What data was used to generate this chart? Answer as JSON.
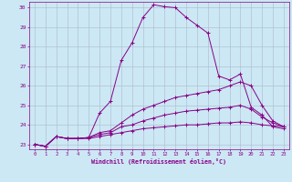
{
  "xlabel": "Windchill (Refroidissement éolien,°C)",
  "background_color": "#cce8f4",
  "line_color": "#880088",
  "grid_color": "#aab8cc",
  "xlim": [
    -0.5,
    23.5
  ],
  "ylim": [
    22.75,
    30.3
  ],
  "xticks": [
    0,
    1,
    2,
    3,
    4,
    5,
    6,
    7,
    8,
    9,
    10,
    11,
    12,
    13,
    14,
    15,
    16,
    17,
    18,
    19,
    20,
    21,
    22,
    23
  ],
  "yticks": [
    23,
    24,
    25,
    26,
    27,
    28,
    29,
    30
  ],
  "series": [
    [
      23.0,
      22.9,
      23.4,
      23.3,
      23.3,
      23.35,
      24.6,
      25.2,
      27.3,
      28.2,
      29.5,
      30.15,
      30.05,
      30.0,
      29.5,
      29.1,
      28.7,
      26.5,
      26.3,
      26.6,
      24.9,
      24.5,
      23.9,
      23.8
    ],
    [
      23.0,
      22.9,
      23.4,
      23.3,
      23.3,
      23.35,
      23.6,
      23.7,
      24.1,
      24.5,
      24.8,
      25.0,
      25.2,
      25.4,
      25.5,
      25.6,
      25.7,
      25.8,
      26.0,
      26.2,
      26.0,
      25.0,
      24.2,
      23.9
    ],
    [
      23.0,
      22.9,
      23.4,
      23.3,
      23.3,
      23.35,
      23.5,
      23.6,
      23.9,
      24.0,
      24.2,
      24.35,
      24.5,
      24.6,
      24.7,
      24.75,
      24.8,
      24.85,
      24.9,
      25.0,
      24.8,
      24.4,
      24.1,
      23.9
    ],
    [
      23.0,
      22.9,
      23.4,
      23.3,
      23.3,
      23.3,
      23.4,
      23.5,
      23.6,
      23.7,
      23.8,
      23.85,
      23.9,
      23.95,
      24.0,
      24.0,
      24.05,
      24.1,
      24.1,
      24.15,
      24.1,
      24.0,
      23.95,
      23.9
    ]
  ]
}
